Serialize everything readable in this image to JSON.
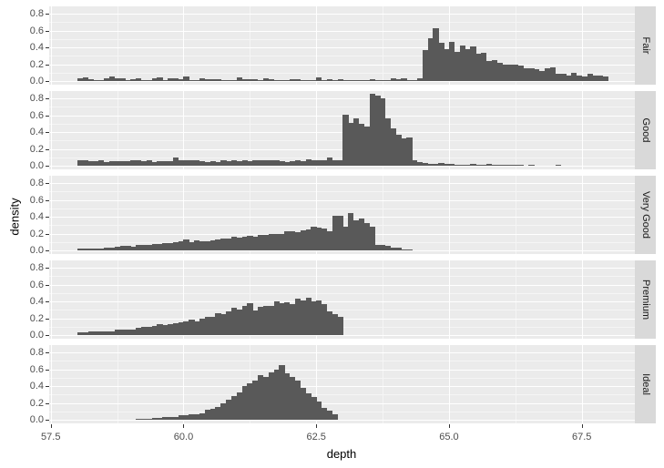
{
  "chart_data": {
    "type": "bar",
    "subtype": "faceted histogram (density)",
    "title": "",
    "xlabel": "depth",
    "ylabel": "density",
    "xlim": [
      57.47,
      68.5
    ],
    "ylim": [
      0,
      0.85
    ],
    "x_ticks": [
      "57.5",
      "60.0",
      "62.5",
      "65.0",
      "67.5"
    ],
    "x_tick_values": [
      57.5,
      60.0,
      62.5,
      65.0,
      67.5
    ],
    "y_ticks": [
      "0.0",
      "0.2",
      "0.4",
      "0.6",
      "0.8"
    ],
    "y_tick_values": [
      0,
      0.2,
      0.4,
      0.6,
      0.8
    ],
    "bin_width": 0.1,
    "grid": true,
    "legend": "none",
    "facets": [
      {
        "label": "Fair",
        "x_start": 58.0,
        "values": [
          0.03,
          0.04,
          0.02,
          0.01,
          0.01,
          0.03,
          0.05,
          0.03,
          0.03,
          0.01,
          0.02,
          0.03,
          0.01,
          0.01,
          0.03,
          0.04,
          0.01,
          0.03,
          0.03,
          0.02,
          0.05,
          0.01,
          0.01,
          0.03,
          0.02,
          0.02,
          0.02,
          0.01,
          0.01,
          0.01,
          0.04,
          0.02,
          0.02,
          0.02,
          0.01,
          0.03,
          0.02,
          0.01,
          0.01,
          0.01,
          0.02,
          0.02,
          0.01,
          0.01,
          0.01,
          0.04,
          0.01,
          0.02,
          0.01,
          0.02,
          0.01,
          0.01,
          0.01,
          0.01,
          0.01,
          0.02,
          0.01,
          0.01,
          0.01,
          0.03,
          0.02,
          0.03,
          0.01,
          0.01,
          0.03,
          0.37,
          0.51,
          0.63,
          0.45,
          0.38,
          0.47,
          0.35,
          0.42,
          0.38,
          0.41,
          0.32,
          0.34,
          0.24,
          0.25,
          0.22,
          0.2,
          0.2,
          0.2,
          0.18,
          0.15,
          0.15,
          0.14,
          0.12,
          0.15,
          0.16,
          0.09,
          0.09,
          0.06,
          0.1,
          0.07,
          0.05,
          0.09,
          0.06,
          0.06,
          0.05
        ]
      },
      {
        "label": "Good",
        "x_start": 58.0,
        "values": [
          0.06,
          0.07,
          0.05,
          0.05,
          0.06,
          0.04,
          0.05,
          0.05,
          0.05,
          0.05,
          0.06,
          0.07,
          0.05,
          0.06,
          0.04,
          0.05,
          0.05,
          0.05,
          0.1,
          0.06,
          0.07,
          0.07,
          0.06,
          0.05,
          0.04,
          0.05,
          0.04,
          0.06,
          0.05,
          0.06,
          0.05,
          0.06,
          0.05,
          0.06,
          0.07,
          0.06,
          0.07,
          0.06,
          0.05,
          0.04,
          0.05,
          0.07,
          0.05,
          0.08,
          0.07,
          0.07,
          0.07,
          0.1,
          0.07,
          0.07,
          0.61,
          0.51,
          0.56,
          0.5,
          0.46,
          0.85,
          0.83,
          0.8,
          0.56,
          0.44,
          0.37,
          0.32,
          0.33,
          0.06,
          0.04,
          0.03,
          0.02,
          0.02,
          0.03,
          0.02,
          0.02,
          0.01,
          0.01,
          0.01,
          0.02,
          0.01,
          0.01,
          0.02,
          0.01,
          0.01,
          0.01,
          0.01,
          0.01,
          0.01,
          0.0,
          0.01,
          0.0,
          0.0,
          0.0,
          0.0,
          0.01
        ]
      },
      {
        "label": "Very Good",
        "x_start": 58.0,
        "values": [
          0.02,
          0.02,
          0.02,
          0.02,
          0.02,
          0.03,
          0.03,
          0.04,
          0.05,
          0.05,
          0.04,
          0.07,
          0.06,
          0.07,
          0.08,
          0.08,
          0.09,
          0.09,
          0.1,
          0.11,
          0.13,
          0.1,
          0.12,
          0.11,
          0.11,
          0.12,
          0.13,
          0.14,
          0.14,
          0.16,
          0.15,
          0.16,
          0.17,
          0.16,
          0.18,
          0.18,
          0.2,
          0.2,
          0.2,
          0.23,
          0.23,
          0.22,
          0.24,
          0.25,
          0.28,
          0.27,
          0.26,
          0.23,
          0.41,
          0.41,
          0.28,
          0.44,
          0.36,
          0.38,
          0.32,
          0.28,
          0.06,
          0.07,
          0.05,
          0.03,
          0.03,
          0.01,
          0.01
        ]
      },
      {
        "label": "Premium",
        "x_start": 58.0,
        "values": [
          0.03,
          0.03,
          0.04,
          0.04,
          0.04,
          0.04,
          0.04,
          0.06,
          0.06,
          0.06,
          0.07,
          0.09,
          0.1,
          0.1,
          0.11,
          0.13,
          0.12,
          0.13,
          0.14,
          0.15,
          0.16,
          0.18,
          0.16,
          0.19,
          0.22,
          0.22,
          0.26,
          0.25,
          0.28,
          0.32,
          0.3,
          0.35,
          0.38,
          0.29,
          0.33,
          0.35,
          0.35,
          0.4,
          0.38,
          0.39,
          0.37,
          0.43,
          0.41,
          0.44,
          0.4,
          0.41,
          0.37,
          0.28,
          0.25,
          0.22
        ]
      },
      {
        "label": "Ideal",
        "x_start": 59.1,
        "values": [
          0.01,
          0.01,
          0.01,
          0.02,
          0.02,
          0.03,
          0.03,
          0.03,
          0.05,
          0.05,
          0.07,
          0.07,
          0.08,
          0.12,
          0.13,
          0.15,
          0.2,
          0.24,
          0.28,
          0.32,
          0.4,
          0.43,
          0.46,
          0.53,
          0.51,
          0.56,
          0.6,
          0.65,
          0.55,
          0.51,
          0.47,
          0.38,
          0.31,
          0.27,
          0.22,
          0.14,
          0.11,
          0.07
        ]
      }
    ]
  },
  "facet_strip_labels": [
    "Fair",
    "Good",
    "Very Good",
    "Premium",
    "Ideal"
  ],
  "colors": {
    "bar": "#595959",
    "panel_background": "#ebebeb",
    "strip_background": "#d9d9d9",
    "grid_major": "#ffffff",
    "axis_text": "#4d4d4d"
  }
}
